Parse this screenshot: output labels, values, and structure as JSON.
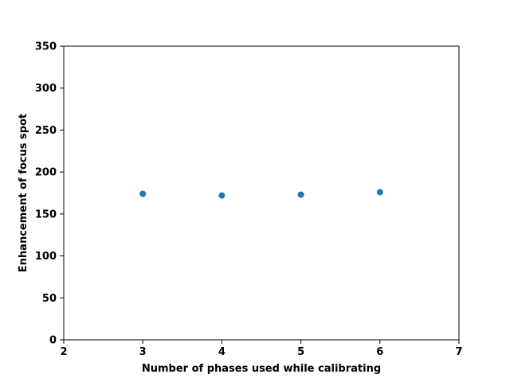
{
  "chart_data": {
    "type": "scatter",
    "title": "",
    "xlabel": "Number of phases used while calibrating",
    "ylabel": "Enhancement of focus spot",
    "xlim": [
      2,
      7
    ],
    "ylim": [
      0,
      350
    ],
    "xticks": [
      2,
      3,
      4,
      5,
      6,
      7
    ],
    "yticks": [
      0,
      50,
      100,
      150,
      200,
      250,
      300,
      350
    ],
    "grid": false,
    "series": [
      {
        "color": "#1f77b4",
        "points": [
          {
            "x": 3,
            "y": 174
          },
          {
            "x": 4,
            "y": 172
          },
          {
            "x": 5,
            "y": 173
          },
          {
            "x": 6,
            "y": 176
          }
        ]
      }
    ]
  }
}
